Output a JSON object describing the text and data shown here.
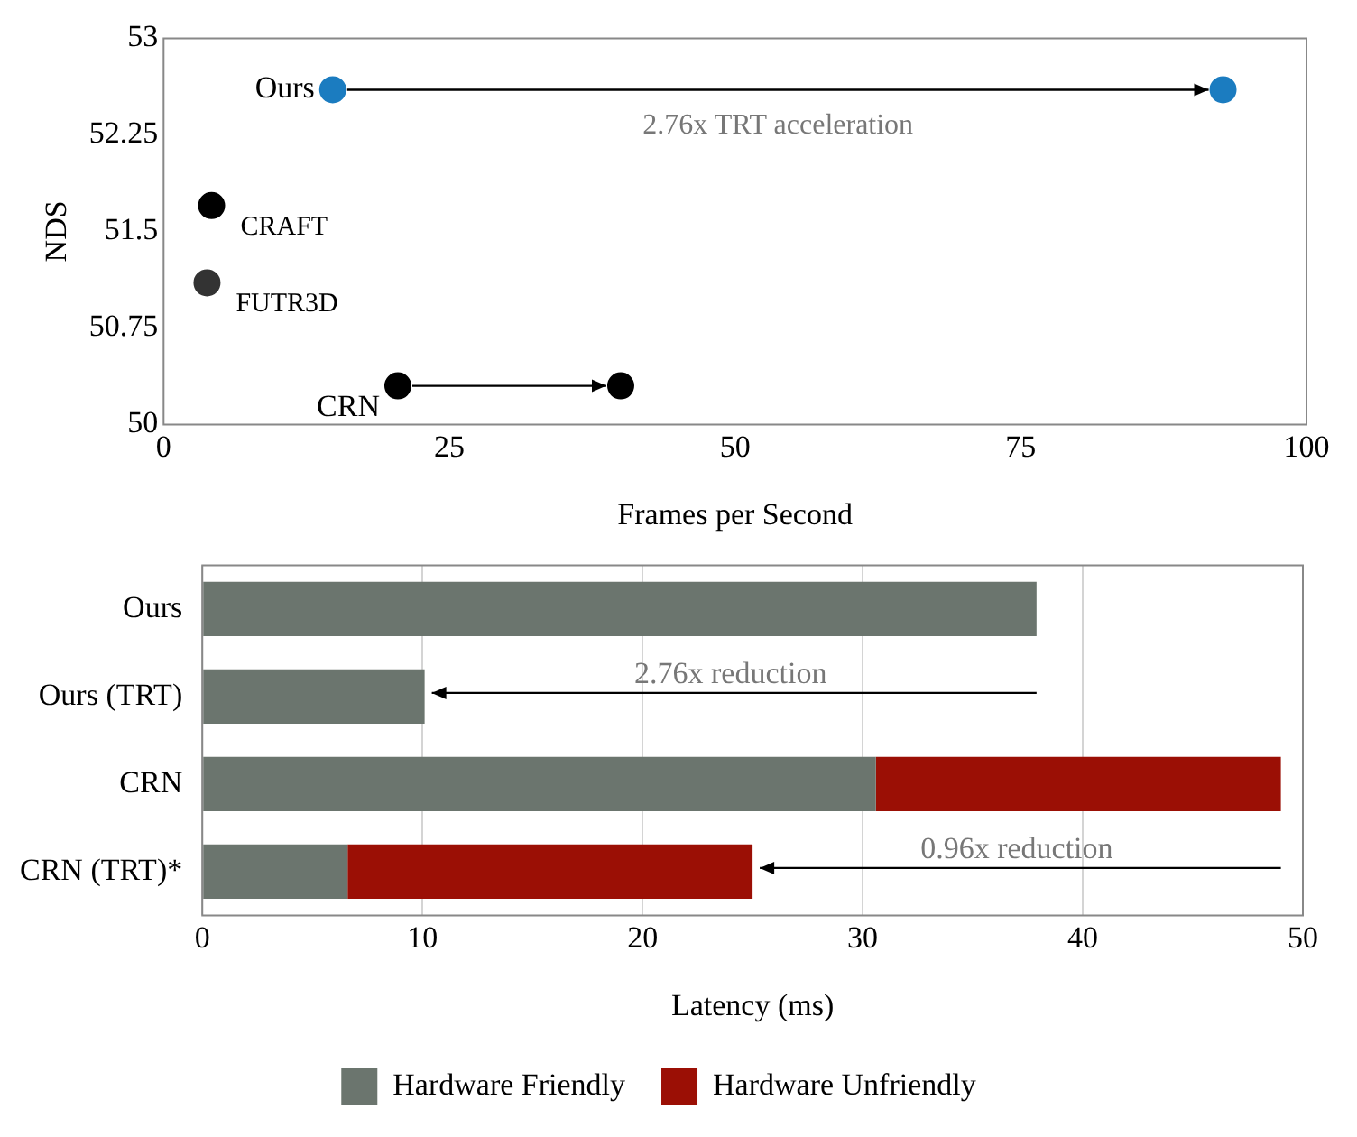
{
  "chart_data": [
    {
      "type": "scatter",
      "xlabel": "Frames per Second",
      "ylabel": "NDS",
      "xlim": [
        0,
        100
      ],
      "xticks": [
        0,
        25,
        50,
        75,
        100
      ],
      "ylim": [
        50,
        53
      ],
      "yticks": [
        50,
        50.75,
        51.5,
        52.25,
        53
      ],
      "grid": false,
      "legend": false,
      "marker": "circle",
      "series": [
        {
          "name": "Ours",
          "color": "#1b7cc0",
          "x": [
            14.8,
            92.7
          ],
          "values": [
            52.6,
            52.6
          ]
        },
        {
          "name": "CRAFT",
          "color": "#000000",
          "x": [
            4.2
          ],
          "values": [
            51.7
          ]
        },
        {
          "name": "FUTR3D",
          "color": "#333333",
          "x": [
            3.8
          ],
          "values": [
            51.1
          ]
        },
        {
          "name": "CRN",
          "color": "#000000",
          "x": [
            20.5,
            40
          ],
          "values": [
            50.3,
            50.3
          ]
        }
      ],
      "annotations": [
        "2.76x TRT acceleration"
      ]
    },
    {
      "type": "bar",
      "orientation": "horizontal",
      "stacked": true,
      "xlabel": "Latency (ms)",
      "xlim": [
        0,
        50
      ],
      "xticks": [
        0,
        10,
        20,
        30,
        40,
        50
      ],
      "grid": "x",
      "legend": "bottom",
      "categories": [
        "Ours",
        "Ours (TRT)",
        "CRN",
        "CRN (TRT)*"
      ],
      "series": [
        {
          "name": "Hardware Friendly",
          "color": "#6b756e",
          "values": [
            37.9,
            10.1,
            30.6,
            6.6
          ]
        },
        {
          "name": "Hardware Unfriendly",
          "color": "#9b0f05",
          "values": [
            null,
            null,
            18.4,
            18.4
          ]
        }
      ],
      "annotations": [
        "2.76x reduction",
        "0.96x reduction"
      ]
    }
  ]
}
